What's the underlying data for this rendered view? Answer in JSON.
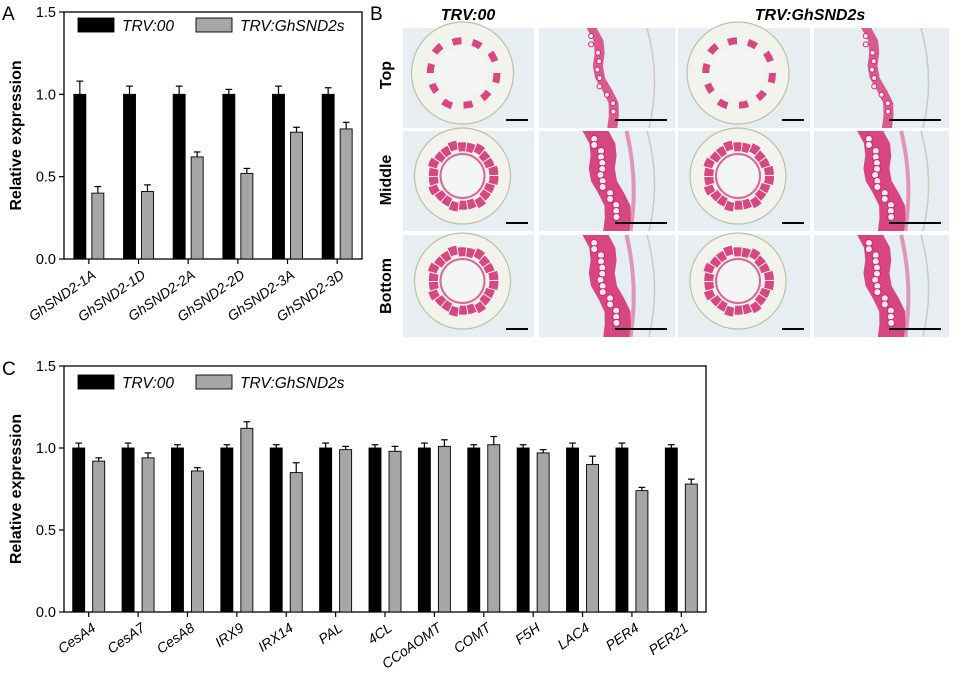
{
  "panel_letters": {
    "a": "A",
    "b": "B",
    "c": "C"
  },
  "colors": {
    "ctrl": "#000000",
    "trt": "#a6a6a6",
    "tissue": "#d4286e",
    "bg": "#e6eef1"
  },
  "panel_b": {
    "col_labels": [
      "TRV:00",
      "TRV:GhSND2s"
    ],
    "row_labels": [
      "Top",
      "Middle",
      "Bottom"
    ]
  },
  "chart_data": [
    {
      "type": "bar",
      "panel": "A",
      "ylabel": "Relative expression",
      "ylim": [
        0,
        1.5
      ],
      "yticks": [
        "0.0",
        "0.5",
        "1.0",
        "1.5"
      ],
      "legend_position": "top",
      "categories": [
        "GhSND2-1A",
        "GhSND2-1D",
        "GhSND2-2A",
        "GhSND2-2D",
        "GhSND2-3A",
        "GhSND2-3D"
      ],
      "series": [
        {
          "name": "TRV:00",
          "color": "#000000",
          "values": [
            1.0,
            1.0,
            1.0,
            1.0,
            1.0,
            1.0
          ],
          "errors": [
            0.08,
            0.05,
            0.05,
            0.03,
            0.05,
            0.04
          ]
        },
        {
          "name": "TRV:GhSND2s",
          "color": "#a6a6a6",
          "values": [
            0.4,
            0.41,
            0.62,
            0.52,
            0.77,
            0.79
          ],
          "errors": [
            0.04,
            0.04,
            0.03,
            0.03,
            0.03,
            0.04
          ]
        }
      ]
    },
    {
      "type": "bar",
      "panel": "C",
      "ylabel": "Relative expression",
      "ylim": [
        0,
        1.5
      ],
      "yticks": [
        "0.0",
        "0.5",
        "1.0",
        "1.5"
      ],
      "legend_position": "top-left",
      "categories": [
        "CesA4",
        "CesA7",
        "CesA8",
        "IRX9",
        "IRX14",
        "PAL",
        "4CL",
        "CCoAOMT",
        "COMT",
        "F5H",
        "LAC4",
        "PER4",
        "PER21"
      ],
      "series": [
        {
          "name": "TRV:00",
          "color": "#000000",
          "values": [
            1.0,
            1.0,
            1.0,
            1.0,
            1.0,
            1.0,
            1.0,
            1.0,
            1.0,
            1.0,
            1.0,
            1.0,
            1.0
          ],
          "errors": [
            0.03,
            0.03,
            0.02,
            0.02,
            0.02,
            0.03,
            0.02,
            0.03,
            0.02,
            0.02,
            0.03,
            0.03,
            0.02
          ]
        },
        {
          "name": "TRV:GhSND2s",
          "color": "#a6a6a6",
          "values": [
            0.92,
            0.94,
            0.86,
            1.12,
            0.85,
            0.99,
            0.98,
            1.01,
            1.02,
            0.97,
            0.9,
            0.74,
            0.78
          ],
          "errors": [
            0.02,
            0.03,
            0.02,
            0.04,
            0.06,
            0.02,
            0.03,
            0.04,
            0.05,
            0.02,
            0.05,
            0.02,
            0.03
          ]
        }
      ]
    }
  ]
}
